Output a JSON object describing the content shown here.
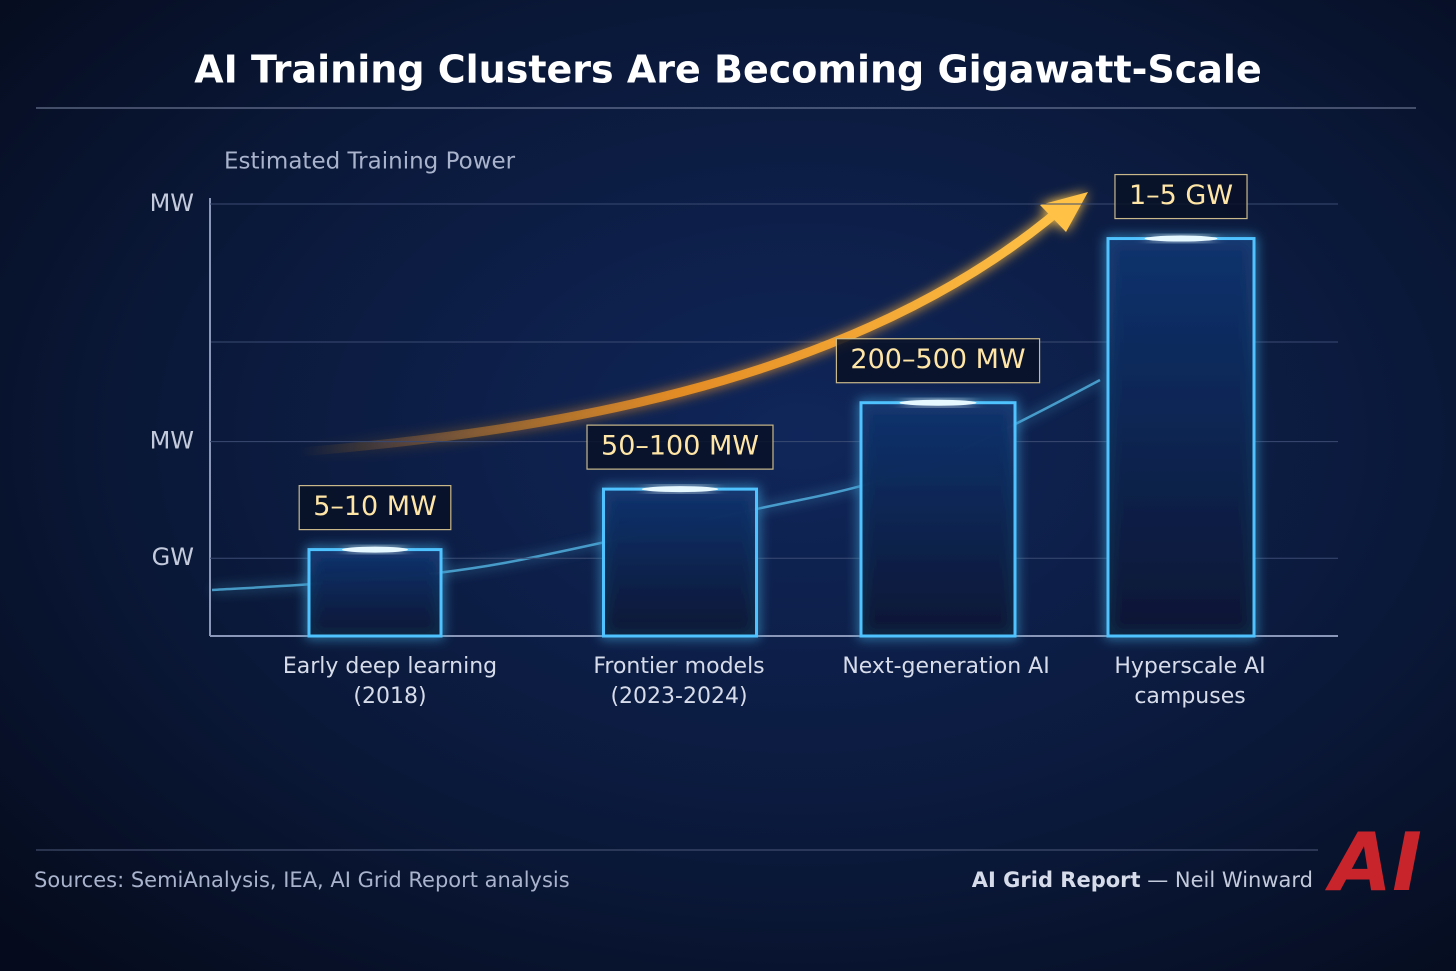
{
  "chart_data": {
    "type": "bar",
    "title": "AI Training Clusters Are Becoming Gigawatt-Scale",
    "y_label": "Estimated Training Power",
    "categories": [
      [
        "Early deep learning",
        "(2018)"
      ],
      [
        "Frontier models",
        "(2023-2024)"
      ],
      [
        "Next-generation AI"
      ],
      [
        "Hyperscale AI",
        "campuses"
      ]
    ],
    "values": [
      20,
      34,
      54,
      92
    ],
    "value_labels": [
      "5–10 MW",
      "50–100 MW",
      "200–500 MW",
      "1–5 GW"
    ],
    "color": "#4fc3ff",
    "ylim": [
      0,
      100
    ],
    "yticks": [
      {
        "value": 18,
        "label": "GW"
      },
      {
        "value": 45,
        "label": "MW"
      },
      {
        "value": 100,
        "label": "MW"
      }
    ],
    "grid": true,
    "source": "Sources: SemiAnalysis, IEA, AI Grid Report analysis",
    "credit_brand": "AI Grid Report",
    "credit_author": " — Neil Winward",
    "logo": "AI"
  }
}
